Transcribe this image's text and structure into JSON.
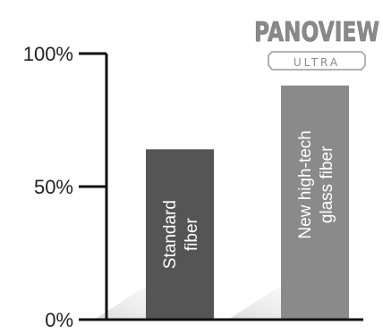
{
  "chart_data": {
    "type": "bar",
    "categories": [
      "Standard fiber",
      "New high-tech glass fiber"
    ],
    "category_lines": [
      [
        "Standard",
        "fiber"
      ],
      [
        "New high-tech",
        "glass fiber"
      ]
    ],
    "values": [
      64,
      88
    ],
    "ylim": [
      0,
      100
    ],
    "yticks": [
      0,
      50,
      100
    ],
    "ytick_labels": [
      "0%",
      "50%",
      "100%"
    ],
    "bar_colors": [
      "#555555",
      "#8a8a8a"
    ],
    "title": "",
    "xlabel": "",
    "ylabel": "",
    "grid": false,
    "legend": "none"
  },
  "brand": {
    "name": "PANOVIEW",
    "sub": "ULTRA",
    "color": "#8a8a8a"
  }
}
